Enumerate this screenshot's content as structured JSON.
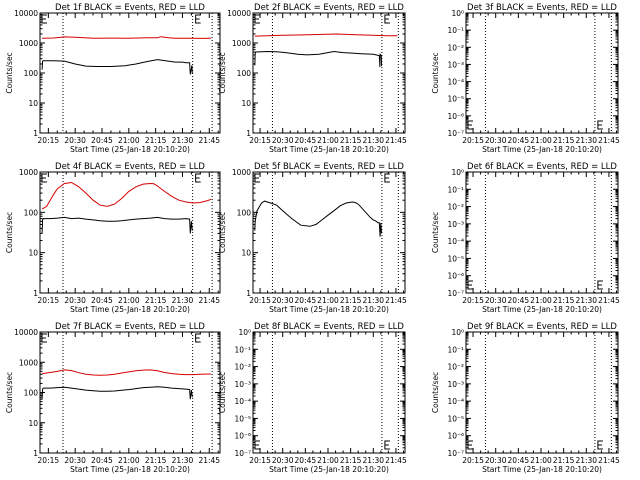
{
  "x_axis": {
    "ticks": [
      "20:15",
      "20:30",
      "20:45",
      "21:00",
      "21:15",
      "21:30",
      "21:45"
    ],
    "tick_minutes": [
      15,
      30,
      45,
      60,
      75,
      90,
      105
    ],
    "range_minutes": [
      10.33,
      111
    ],
    "label": "Start Time (25-Jan-18 20:10:20)"
  },
  "vlines_minutes": [
    23.2,
    95.7,
    106.6
  ],
  "y_axis_label": "Counts/sec",
  "colors": {
    "events": "#000000",
    "lld": "#d40000",
    "axis": "#000000"
  },
  "chart_data": [
    {
      "type": "line",
      "title": "Det 1f BLACK = Events, RED = LLD",
      "yscale": "log",
      "ylim": [
        1,
        10000
      ],
      "ytick_labels": [
        "1",
        "10",
        "100",
        "1000",
        "10000"
      ],
      "series": [
        {
          "color": "red",
          "x": [
            11.5,
            18,
            24,
            30,
            40,
            50,
            60,
            70,
            76,
            78,
            82,
            86,
            92,
            95,
            100,
            106
          ],
          "y": [
            1450,
            1470,
            1600,
            1550,
            1430,
            1460,
            1450,
            1500,
            1500,
            1620,
            1500,
            1450,
            1430,
            1450,
            1420,
            1450
          ]
        },
        {
          "color": "black",
          "x": [
            11.5,
            11.8,
            12.2,
            18,
            24,
            30,
            36,
            42,
            50,
            58,
            64,
            70,
            76,
            82,
            86,
            90,
            92,
            94,
            94.4,
            95.3,
            95.5
          ],
          "y": [
            130,
            250,
            255,
            255,
            250,
            200,
            170,
            165,
            165,
            175,
            200,
            240,
            280,
            250,
            230,
            230,
            220,
            220,
            90,
            180,
            95
          ]
        }
      ]
    },
    {
      "type": "line",
      "title": "Det 2f BLACK = Events, RED = LLD",
      "yscale": "log",
      "ylim": [
        1,
        10000
      ],
      "ytick_labels": [
        "1",
        "10",
        "100",
        "1000",
        "10000"
      ],
      "series": [
        {
          "color": "red",
          "x": [
            11.5,
            20,
            30,
            40,
            50,
            60,
            66,
            70,
            76,
            84,
            90,
            96,
            100,
            106
          ],
          "y": [
            1700,
            1750,
            1800,
            1850,
            1900,
            1950,
            2000,
            1950,
            1900,
            1850,
            1800,
            1760,
            1750,
            1740
          ]
        },
        {
          "color": "black",
          "x": [
            11.5,
            11.8,
            12.2,
            20,
            26,
            32,
            40,
            46,
            54,
            60,
            64,
            70,
            76,
            82,
            90,
            94,
            94.4,
            94.6,
            95.3,
            95.5
          ],
          "y": [
            180,
            450,
            500,
            520,
            510,
            480,
            420,
            400,
            420,
            480,
            520,
            480,
            460,
            440,
            420,
            380,
            160,
            420,
            380,
            170
          ]
        }
      ]
    },
    {
      "type": "line",
      "title": "Det 3f BLACK = Events, RED = LLD",
      "yscale": "log",
      "ylim": [
        1e-07,
        1
      ],
      "ytick_labels": [
        "10⁰",
        "10⁻¹",
        "10⁻²",
        "10⁻³",
        "10⁻⁴",
        "10⁻⁵",
        "10⁻⁶",
        "10⁻⁷"
      ],
      "series": []
    },
    {
      "type": "line",
      "title": "Det 4f BLACK = Events, RED = LLD",
      "yscale": "log",
      "ylim": [
        1,
        1000
      ],
      "ytick_labels": [
        "1",
        "10",
        "100",
        "1000"
      ],
      "series": [
        {
          "color": "red",
          "x": [
            11.5,
            14,
            18,
            20,
            24,
            28,
            32,
            36,
            40,
            44,
            48,
            52,
            56,
            60,
            64,
            68,
            72,
            74,
            76,
            80,
            84,
            88,
            92,
            96,
            100,
            104,
            106
          ],
          "y": [
            120,
            140,
            280,
            380,
            520,
            550,
            430,
            300,
            200,
            150,
            140,
            160,
            220,
            330,
            430,
            500,
            520,
            510,
            450,
            330,
            250,
            200,
            180,
            170,
            175,
            195,
            210
          ]
        },
        {
          "color": "black",
          "x": [
            11.5,
            11.8,
            12.2,
            16,
            20,
            24,
            28,
            32,
            36,
            40,
            44,
            48,
            52,
            56,
            60,
            64,
            68,
            72,
            76,
            80,
            84,
            88,
            92,
            94,
            94.4,
            95,
            95.5
          ],
          "y": [
            30,
            65,
            70,
            70,
            72,
            75,
            70,
            72,
            68,
            65,
            62,
            60,
            60,
            62,
            65,
            68,
            70,
            72,
            75,
            70,
            68,
            68,
            70,
            68,
            30,
            60,
            35
          ]
        }
      ]
    },
    {
      "type": "line",
      "title": "Det 5f BLACK = Events, RED = LLD",
      "yscale": "log",
      "ylim": [
        1,
        1000
      ],
      "ytick_labels": [
        "1",
        "10",
        "100",
        "1000"
      ],
      "series": [
        {
          "color": "black",
          "x": [
            11.5,
            11.8,
            13,
            16,
            18,
            22,
            26,
            30,
            36,
            42,
            48,
            52,
            56,
            60,
            64,
            68,
            72,
            76,
            78,
            80,
            84,
            88,
            90,
            92,
            93,
            94,
            94.5,
            95,
            95.5
          ],
          "y": [
            35,
            60,
            110,
            170,
            190,
            170,
            150,
            110,
            70,
            48,
            45,
            50,
            65,
            85,
            110,
            145,
            170,
            180,
            175,
            160,
            110,
            75,
            65,
            60,
            55,
            55,
            25,
            55,
            30
          ]
        }
      ]
    },
    {
      "type": "line",
      "title": "Det 6f BLACK = Events, RED = LLD",
      "yscale": "log",
      "ylim": [
        1e-07,
        1
      ],
      "ytick_labels": [
        "10⁰",
        "10⁻¹",
        "10⁻²",
        "10⁻³",
        "10⁻⁴",
        "10⁻⁵",
        "10⁻⁶",
        "10⁻⁷"
      ],
      "series": []
    },
    {
      "type": "line",
      "title": "Det 7f BLACK = Events, RED = LLD",
      "yscale": "log",
      "ylim": [
        1,
        10000
      ],
      "ytick_labels": [
        "1",
        "10",
        "100",
        "1000",
        "10000"
      ],
      "series": [
        {
          "color": "red",
          "x": [
            11.5,
            16,
            20,
            24,
            28,
            32,
            36,
            40,
            44,
            48,
            52,
            56,
            60,
            64,
            68,
            72,
            76,
            80,
            84,
            88,
            92,
            96,
            100,
            106
          ],
          "y": [
            420,
            460,
            500,
            560,
            530,
            450,
            400,
            380,
            370,
            380,
            400,
            440,
            480,
            520,
            550,
            560,
            520,
            460,
            420,
            400,
            390,
            390,
            400,
            410
          ]
        },
        {
          "color": "black",
          "x": [
            11.5,
            11.8,
            12.2,
            16,
            20,
            24,
            28,
            32,
            36,
            40,
            44,
            48,
            52,
            56,
            60,
            64,
            68,
            72,
            76,
            80,
            84,
            88,
            92,
            94,
            94.4,
            95,
            95.5
          ],
          "y": [
            60,
            130,
            140,
            140,
            145,
            150,
            140,
            130,
            120,
            115,
            110,
            110,
            112,
            118,
            125,
            135,
            145,
            150,
            155,
            150,
            140,
            135,
            130,
            125,
            60,
            120,
            70
          ]
        }
      ]
    },
    {
      "type": "line",
      "title": "Det 8f BLACK = Events, RED = LLD",
      "yscale": "log",
      "ylim": [
        1e-07,
        1
      ],
      "ytick_labels": [
        "10⁰",
        "10⁻¹",
        "10⁻²",
        "10⁻³",
        "10⁻⁴",
        "10⁻⁵",
        "10⁻⁶",
        "10⁻⁷"
      ],
      "series": []
    },
    {
      "type": "line",
      "title": "Det 9f BLACK = Events, RED = LLD",
      "yscale": "log",
      "ylim": [
        1e-07,
        1
      ],
      "ytick_labels": [
        "10⁰",
        "10⁻¹",
        "10⁻²",
        "10⁻³",
        "10⁻⁴",
        "10⁻⁵",
        "10⁻⁶",
        "10⁻⁷"
      ],
      "series": []
    }
  ]
}
